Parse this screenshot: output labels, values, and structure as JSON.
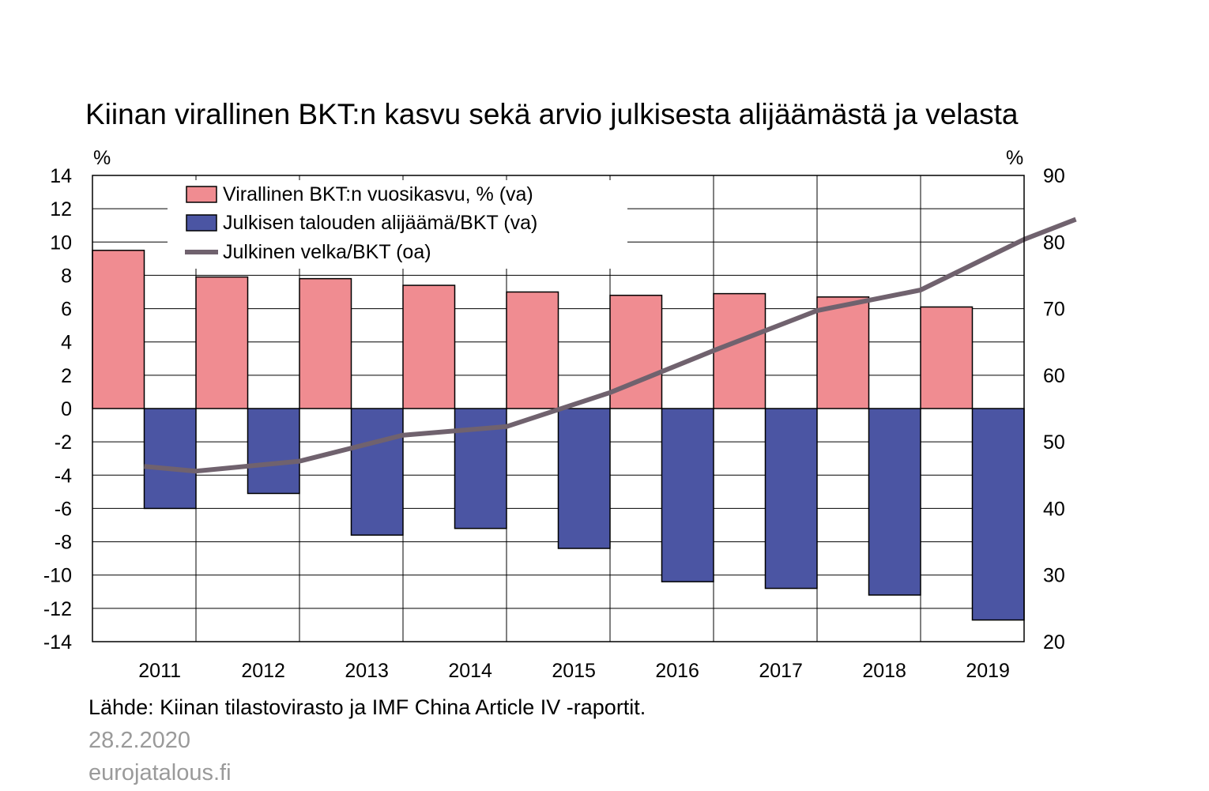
{
  "chart_data": {
    "type": "bar",
    "title": "Kiinan virallinen BKT:n kasvu sekä arvio julkisesta alijäämästä ja velasta",
    "left_unit": "%",
    "right_unit": "%",
    "categories": [
      "2011",
      "2012",
      "2013",
      "2014",
      "2015",
      "2016",
      "2017",
      "2018",
      "2019"
    ],
    "series": [
      {
        "name": "Virallinen BKT:n vuosikasvu, % (va)",
        "kind": "bar",
        "axis": "left",
        "color": "#f08c91",
        "values": [
          9.5,
          7.9,
          7.8,
          7.4,
          7.0,
          6.8,
          6.9,
          6.7,
          6.1
        ]
      },
      {
        "name": "Julkisen talouden alijäämä/BKT (va)",
        "kind": "bar",
        "axis": "left",
        "color": "#4b55a3",
        "values": [
          -6.0,
          -5.1,
          -7.6,
          -7.2,
          -8.4,
          -10.4,
          -10.8,
          -11.2,
          -12.7
        ]
      },
      {
        "name": "Julkinen velka/BKT (oa)",
        "kind": "line",
        "axis": "right",
        "color": "#70626e",
        "x": [
          2010.5,
          2011,
          2012,
          2013,
          2014,
          2015,
          2016,
          2017,
          2018,
          2019,
          2019.5
        ],
        "values": [
          46.3,
          45.6,
          47.1,
          51.0,
          52.3,
          57.4,
          63.7,
          69.7,
          72.8,
          80.4,
          83.4
        ]
      }
    ],
    "left_axis": {
      "ylim": [
        -14,
        14
      ],
      "ticks": [
        "14",
        "12",
        "10",
        "8",
        "6",
        "4",
        "2",
        "0",
        "-2",
        "-4",
        "-6",
        "-8",
        "-10",
        "-12",
        "-14"
      ]
    },
    "right_axis": {
      "ylim": [
        20,
        90
      ],
      "ticks": [
        "90",
        "80",
        "70",
        "60",
        "50",
        "40",
        "30",
        "20"
      ]
    },
    "grid": true,
    "legend_position": "top-left"
  },
  "footer": {
    "source": "Lähde: Kiinan tilastovirasto ja IMF China Article IV -raportit.",
    "date": "28.2.2020",
    "site": "eurojatalous.fi"
  }
}
